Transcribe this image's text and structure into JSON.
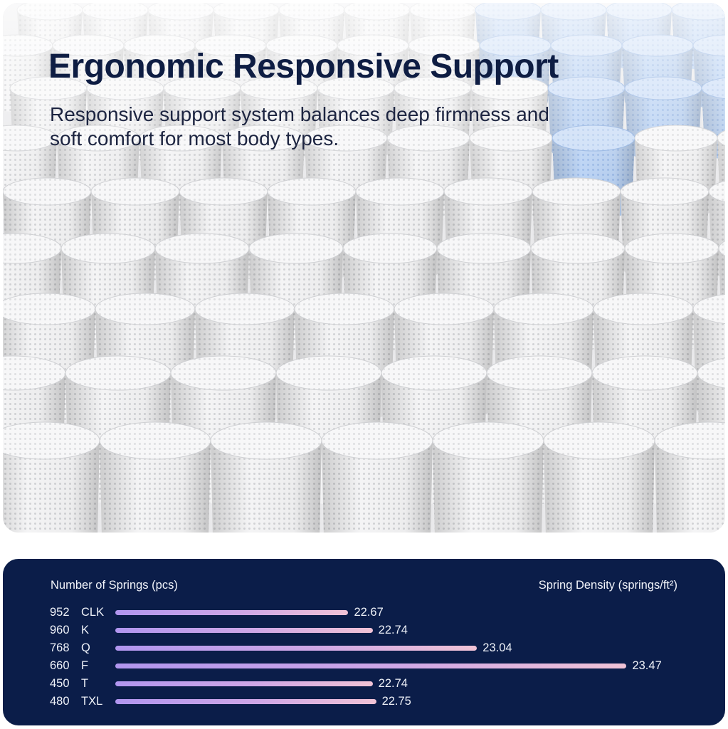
{
  "headline": "Ergonomic Responsive Support",
  "subheadline": "Responsive support system balances deep firmness and soft comfort for most body types.",
  "photo": {
    "subject": "pocket-coil-springs",
    "colors": {
      "fabric": "#f3f3f4",
      "shadow": "#c9cacd",
      "accent_coils": "#a9c6f0"
    }
  },
  "specs": {
    "left_heading": "Number of Springs (pcs)",
    "right_heading": "Spring Density (springs/ft²)",
    "density_axis": [
      22.0,
      23.6
    ],
    "rows": [
      {
        "count": "952",
        "size": "CLK",
        "density": 22.67
      },
      {
        "count": "960",
        "size": "K",
        "density": 22.74
      },
      {
        "count": "768",
        "size": "Q",
        "density": 23.04
      },
      {
        "count": "660",
        "size": "F",
        "density": 23.47
      },
      {
        "count": "450",
        "size": "T",
        "density": 22.74
      },
      {
        "count": "480",
        "size": "TXL",
        "density": 22.75
      }
    ]
  },
  "colors": {
    "panel": "#0b1d49",
    "headline": "#0e1d43",
    "bar_start": "#b196ef",
    "bar_end": "#f1c3d6"
  }
}
